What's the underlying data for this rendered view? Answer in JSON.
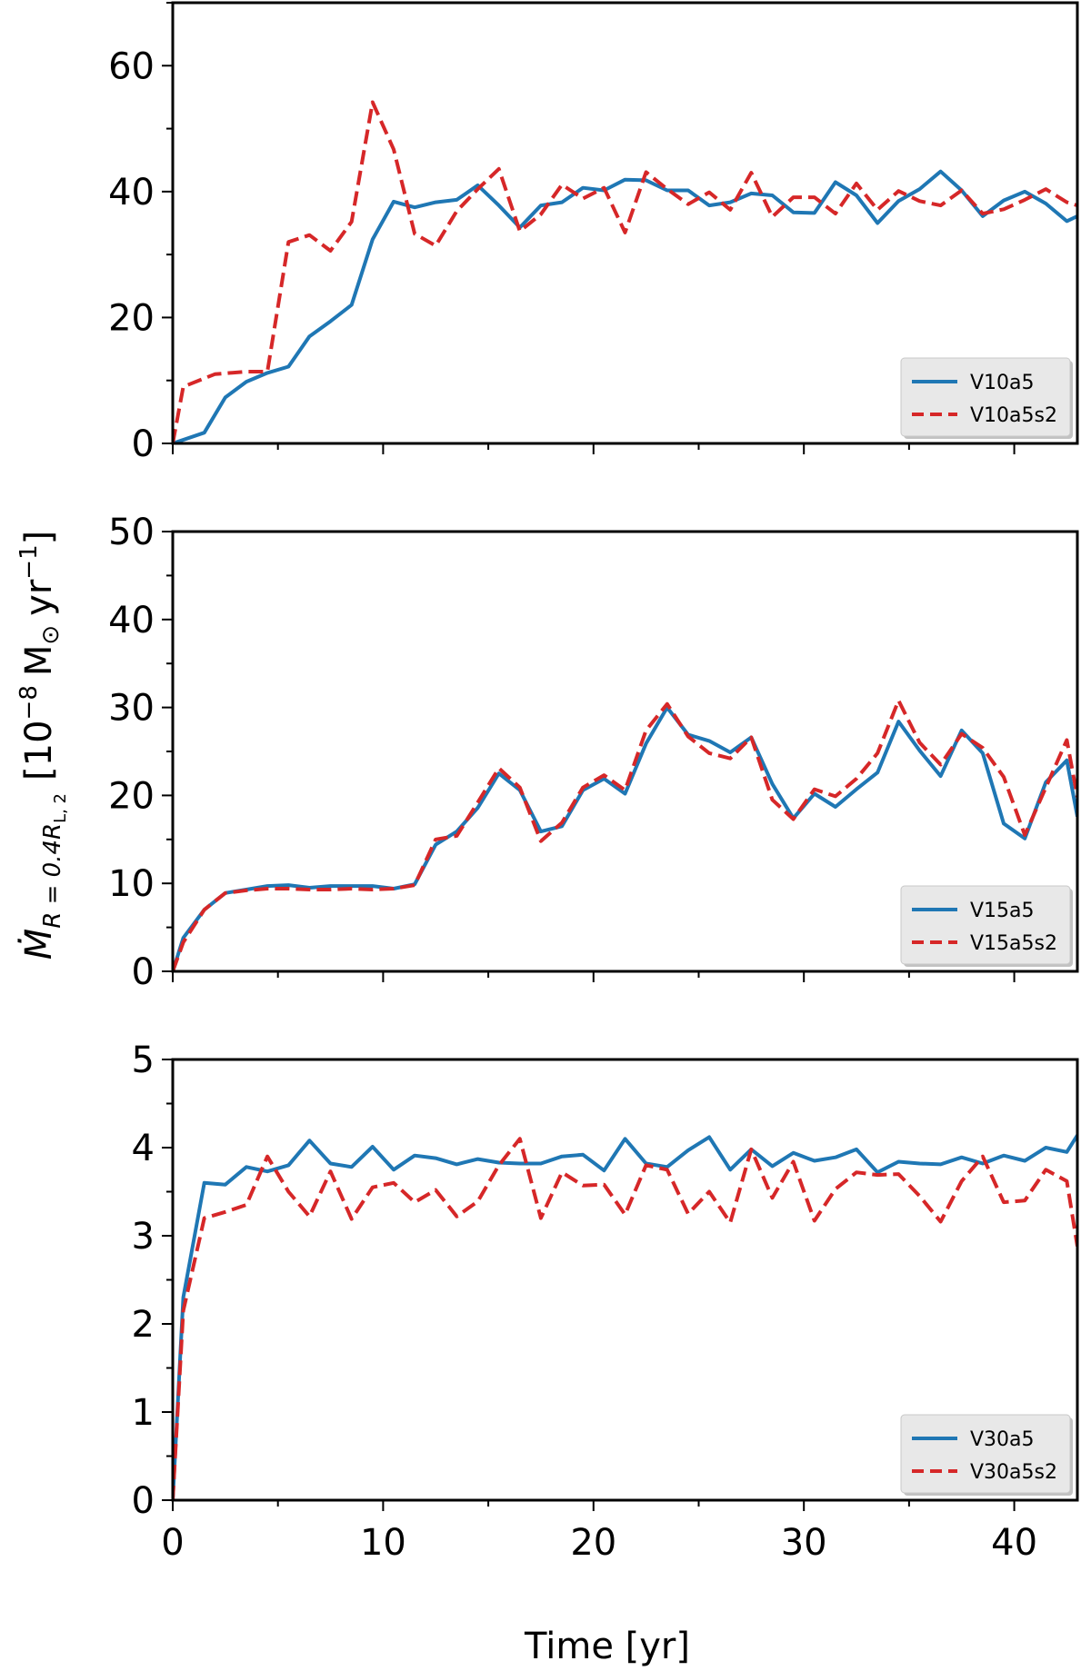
{
  "figure": {
    "xlabel": "Time [yr]",
    "ylabel_parts": {
      "mdot": "Ṁ",
      "subscript": "R = 0.4R",
      "subsub": "L, 2",
      "units": "[10",
      "exp": "−8",
      "units_tail": "M",
      "sun": "⊙",
      "yr": "yr",
      "yr_exp": "−1",
      "close": "]"
    }
  },
  "chart_data": [
    {
      "type": "line",
      "xlim": [
        0,
        43
      ],
      "ylim": [
        0,
        70
      ],
      "yticks": [
        0,
        20,
        40,
        60
      ],
      "xticks": [
        0,
        10,
        20,
        30,
        40
      ],
      "legend_position": "lower-right",
      "series": [
        {
          "name": "V10a5",
          "color": "#1f77b4",
          "style": "solid",
          "x": [
            0,
            1.5,
            2.5,
            3.5,
            4.5,
            5.5,
            6.5,
            7.5,
            8.5,
            9.5,
            10.5,
            11.5,
            12.5,
            13.5,
            14.5,
            15.5,
            16.5,
            17.5,
            18.5,
            19.5,
            20.5,
            21.5,
            22.5,
            23.5,
            24.5,
            25.5,
            26.5,
            27.5,
            28.5,
            29.5,
            30.5,
            31.5,
            32.5,
            33.5,
            34.5,
            35.5,
            36.5,
            37.5,
            38.5,
            39.5,
            40.5,
            41.5,
            42.5,
            43
          ],
          "y": [
            0,
            1.7,
            7.3,
            9.8,
            11.2,
            12.2,
            17,
            19.4,
            22,
            32.4,
            38.4,
            37.5,
            38.3,
            38.7,
            41,
            37.8,
            34.3,
            37.8,
            38.3,
            40.6,
            40.2,
            41.9,
            41.8,
            40.2,
            40.2,
            37.8,
            38.3,
            39.7,
            39.4,
            36.7,
            36.6,
            41.5,
            39.4,
            35,
            38.5,
            40.4,
            43.2,
            40.2,
            36.1,
            38.6,
            40,
            38.1,
            35.3,
            36.1
          ]
        },
        {
          "name": "V10a5s2",
          "color": "#d62728",
          "style": "dashed",
          "x": [
            0,
            0.5,
            2,
            3.5,
            4.5,
            5.5,
            6.5,
            7.5,
            8.5,
            9.5,
            10.5,
            11.5,
            12.5,
            13.5,
            14.5,
            15.5,
            16.5,
            17.5,
            18.5,
            19.5,
            20.5,
            21.5,
            22.5,
            23.5,
            24.5,
            25.5,
            26.5,
            27.5,
            28.5,
            29.5,
            30.5,
            31.5,
            32.5,
            33.5,
            34.5,
            35.5,
            36.5,
            37.5,
            38.5,
            39.5,
            40.5,
            41.5,
            42.5,
            43
          ],
          "y": [
            0,
            9,
            11,
            11.4,
            11.4,
            32,
            33.1,
            30.6,
            35.2,
            54.2,
            46.7,
            33.3,
            31.4,
            36.9,
            40.4,
            43.6,
            33.7,
            36.4,
            41.1,
            38.9,
            40.6,
            33.5,
            43.1,
            40.4,
            38,
            39.9,
            37.1,
            43,
            36,
            39.1,
            39.1,
            36.5,
            41.3,
            37.1,
            40.1,
            38.5,
            37.8,
            40.2,
            36.5,
            37.2,
            38.7,
            40.4,
            38.3,
            37.8
          ]
        }
      ]
    },
    {
      "type": "line",
      "xlim": [
        0,
        43
      ],
      "ylim": [
        0,
        50
      ],
      "yticks": [
        0,
        10,
        20,
        30,
        40,
        50
      ],
      "xticks": [
        0,
        10,
        20,
        30,
        40
      ],
      "legend_position": "lower-right",
      "series": [
        {
          "name": "V15a5",
          "color": "#1f77b4",
          "style": "solid",
          "x": [
            0,
            0.5,
            1.5,
            2.5,
            3.5,
            4.5,
            5.5,
            6.5,
            7.5,
            8.5,
            9.5,
            10.5,
            11.5,
            12.5,
            13.5,
            14.5,
            15.5,
            16.5,
            17.5,
            18.5,
            19.5,
            20.5,
            21.5,
            22.5,
            23.5,
            24.5,
            25.5,
            26.5,
            27.5,
            28.5,
            29.5,
            30.5,
            31.5,
            32.5,
            33.5,
            34.5,
            35.5,
            36.5,
            37.5,
            38.5,
            39.5,
            40.5,
            41.5,
            42.5,
            43
          ],
          "y": [
            0,
            3.8,
            7,
            8.9,
            9.3,
            9.7,
            9.8,
            9.5,
            9.7,
            9.7,
            9.7,
            9.4,
            9.9,
            14.4,
            15.9,
            18.6,
            22.5,
            20.6,
            15.9,
            16.5,
            20.6,
            21.9,
            20.2,
            25.9,
            30,
            26.9,
            26.2,
            24.9,
            26.6,
            21.3,
            17.4,
            20.2,
            18.7,
            20.7,
            22.6,
            28.4,
            25.1,
            22.2,
            27.4,
            24.8,
            16.8,
            15.1,
            21.5,
            24,
            17.6
          ]
        },
        {
          "name": "V15a5s2",
          "color": "#d62728",
          "style": "dashed",
          "x": [
            0,
            0.5,
            1.5,
            2.5,
            3.5,
            4.5,
            5.5,
            6.5,
            7.5,
            8.5,
            9.5,
            10.5,
            11.5,
            12.5,
            13.5,
            14.5,
            15.5,
            16.5,
            17.5,
            18.5,
            19.5,
            20.5,
            21.5,
            22.5,
            23.5,
            24.5,
            25.5,
            26.5,
            27.5,
            28.5,
            29.5,
            30.5,
            31.5,
            32.5,
            33.5,
            34.5,
            35.5,
            36.5,
            37.5,
            38.5,
            39.5,
            40.5,
            41.5,
            42.5,
            43
          ],
          "y": [
            0,
            3.3,
            7,
            8.9,
            9.2,
            9.4,
            9.4,
            9.3,
            9.3,
            9.4,
            9.3,
            9.4,
            9.8,
            15,
            15.4,
            19.2,
            23.1,
            20.9,
            14.8,
            16.9,
            20.9,
            22.3,
            20.6,
            27.4,
            30.4,
            26.7,
            24.8,
            24.2,
            26.6,
            19.5,
            17.3,
            20.7,
            19.9,
            21.9,
            24.8,
            30.8,
            26,
            23.5,
            27,
            25.4,
            22.1,
            15.5,
            20.9,
            26.3,
            19.8
          ]
        }
      ]
    },
    {
      "type": "line",
      "xlim": [
        0,
        43
      ],
      "ylim": [
        0,
        5
      ],
      "yticks": [
        0,
        1,
        2,
        3,
        4,
        5
      ],
      "xticks": [
        0,
        10,
        20,
        30,
        40
      ],
      "legend_position": "lower-right",
      "series": [
        {
          "name": "V30a5",
          "color": "#1f77b4",
          "style": "solid",
          "x": [
            0,
            0.5,
            1.5,
            2.5,
            3.5,
            4.5,
            5.5,
            6.5,
            7.5,
            8.5,
            9.5,
            10.5,
            11.5,
            12.5,
            13.5,
            14.5,
            15.5,
            16.5,
            17.5,
            18.5,
            19.5,
            20.5,
            21.5,
            22.5,
            23.5,
            24.5,
            25.5,
            26.5,
            27.5,
            28.5,
            29.5,
            30.5,
            31.5,
            32.5,
            33.5,
            34.5,
            35.5,
            36.5,
            37.5,
            38.5,
            39.5,
            40.5,
            41.5,
            42.5,
            43
          ],
          "y": [
            0,
            2.3,
            3.6,
            3.58,
            3.78,
            3.73,
            3.8,
            4.08,
            3.82,
            3.78,
            4.01,
            3.75,
            3.91,
            3.88,
            3.81,
            3.87,
            3.83,
            3.82,
            3.82,
            3.9,
            3.92,
            3.74,
            4.1,
            3.82,
            3.78,
            3.97,
            4.12,
            3.75,
            3.98,
            3.79,
            3.94,
            3.85,
            3.89,
            3.98,
            3.72,
            3.84,
            3.82,
            3.81,
            3.89,
            3.82,
            3.91,
            3.85,
            4,
            3.95,
            4.14
          ]
        },
        {
          "name": "V30a5s2",
          "color": "#d62728",
          "style": "dashed",
          "x": [
            0,
            0.5,
            1.5,
            2.5,
            3.5,
            4.5,
            5.5,
            6.5,
            7.5,
            8.5,
            9.5,
            10.5,
            11.5,
            12.5,
            13.5,
            14.5,
            15.5,
            16.5,
            17.5,
            18.5,
            19.5,
            20.5,
            21.5,
            22.5,
            23.5,
            24.5,
            25.5,
            26.5,
            27.5,
            28.5,
            29.5,
            30.5,
            31.5,
            32.5,
            33.5,
            34.5,
            35.5,
            36.5,
            37.5,
            38.5,
            39.5,
            40.5,
            41.5,
            42.5,
            43
          ],
          "y": [
            0,
            2.15,
            3.2,
            3.27,
            3.35,
            3.9,
            3.5,
            3.22,
            3.73,
            3.19,
            3.55,
            3.6,
            3.38,
            3.52,
            3.22,
            3.39,
            3.8,
            4.1,
            3.2,
            3.72,
            3.57,
            3.58,
            3.24,
            3.8,
            3.75,
            3.25,
            3.5,
            3.15,
            3.98,
            3.43,
            3.84,
            3.17,
            3.53,
            3.72,
            3.69,
            3.7,
            3.45,
            3.16,
            3.62,
            3.9,
            3.38,
            3.4,
            3.75,
            3.62,
            2.88
          ]
        }
      ]
    }
  ]
}
